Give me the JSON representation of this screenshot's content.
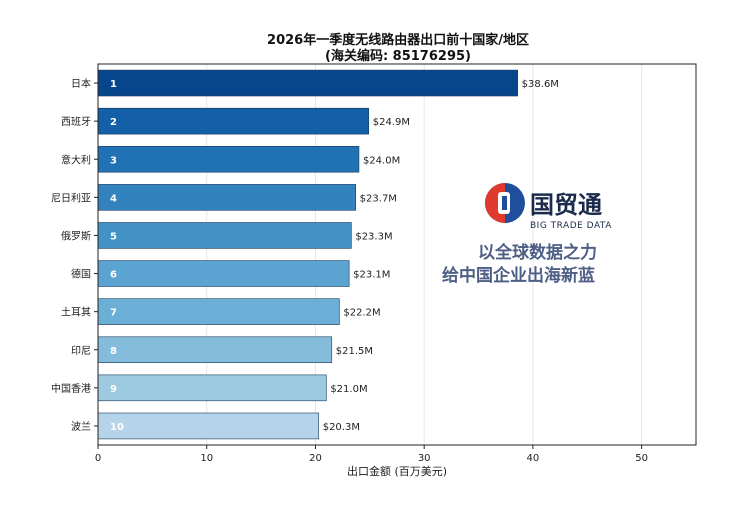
{
  "chart_data": {
    "type": "bar",
    "orientation": "horizontal",
    "title": "2026年一季度无线路由器出口前十国家/地区",
    "subtitle": "(海关编码: 85176295)",
    "xlabel": "出口金额 (百万美元)",
    "ylabel": "",
    "xlim": [
      0,
      55
    ],
    "xticks": [
      0,
      10,
      20,
      30,
      40,
      50
    ],
    "grid": true,
    "categories": [
      "日本",
      "西班牙",
      "意大利",
      "尼日利亚",
      "俄罗斯",
      "德国",
      "土耳其",
      "印尼",
      "中国香港",
      "波兰"
    ],
    "values": [
      38.6,
      24.9,
      24.0,
      23.7,
      23.3,
      23.1,
      22.2,
      21.5,
      21.0,
      20.3
    ],
    "value_labels": [
      "$38.6M",
      "$24.9M",
      "$24.0M",
      "$23.7M",
      "$23.3M",
      "$23.1M",
      "$22.2M",
      "$21.5M",
      "$21.0M",
      "$20.3M"
    ],
    "ranks": [
      "1",
      "2",
      "3",
      "4",
      "5",
      "6",
      "7",
      "8",
      "9",
      "10"
    ],
    "colors": [
      "#08468c",
      "#1460a8",
      "#2171b5",
      "#3282be",
      "#4292c6",
      "#5ba3d0",
      "#6baed6",
      "#85bcdb",
      "#9ecae1",
      "#b5d4e9"
    ]
  },
  "watermark": {
    "brand": "国贸通",
    "brand_en": "BIG TRADE DATA",
    "slogan_line1": "以全球数据之力",
    "slogan_line2": "给中国企业出海新蓝",
    "logo_icon": "big-trade-data-logo-icon"
  }
}
